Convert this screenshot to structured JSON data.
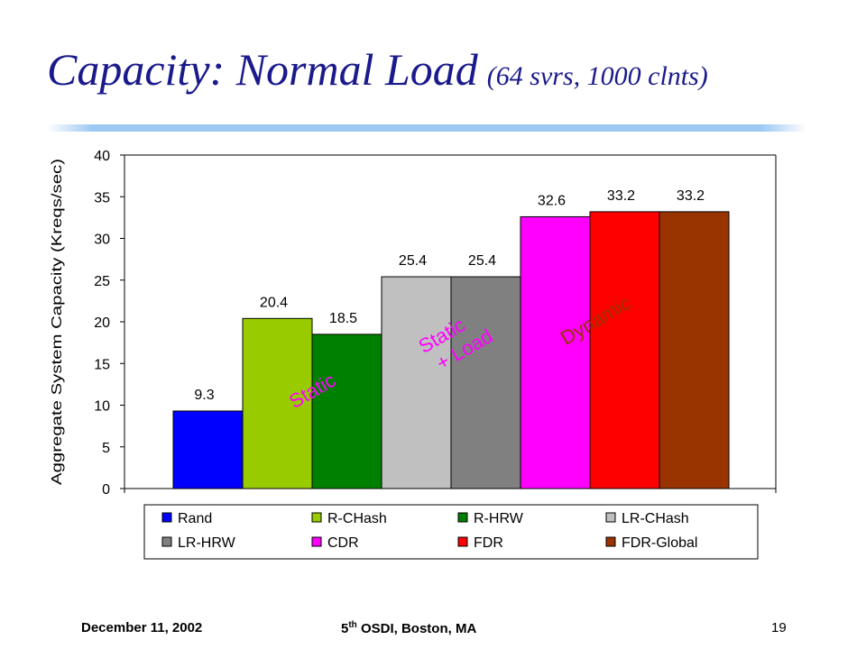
{
  "slide": {
    "title": "Capacity: Normal Load",
    "subtitle": "(64 svrs, 1000 clnts)"
  },
  "footer": {
    "date": "December 11, 2002",
    "conference_ordinal": "5",
    "conference_ordinal_suffix": "th",
    "conference_rest": " OSDI, Boston, MA",
    "page_number": "19"
  },
  "chart_data": {
    "type": "bar",
    "title": "",
    "xlabel": "",
    "ylabel": "Aggregate System Capacity (Kreqs/sec)",
    "ylim": [
      0,
      40
    ],
    "yticks": [
      0,
      5,
      10,
      15,
      20,
      25,
      30,
      35,
      40
    ],
    "grid": false,
    "legend_position": "bottom",
    "categories": [
      "Rand",
      "R-CHash",
      "R-HRW",
      "LR-CHash",
      "LR-HRW",
      "CDR",
      "FDR",
      "FDR-Global"
    ],
    "values": [
      9.3,
      20.4,
      18.5,
      25.4,
      25.4,
      32.6,
      33.2,
      33.2
    ],
    "data_labels": [
      "9.3",
      "20.4",
      "18.5",
      "25.4",
      "25.4",
      "32.6",
      "33.2",
      "33.2"
    ],
    "colors": [
      "#0000ff",
      "#99cc00",
      "#008000",
      "#c0c0c0",
      "#808080",
      "#ff00ff",
      "#ff0000",
      "#993300"
    ],
    "annotations": [
      {
        "text": "Static",
        "color": "#ff00ff"
      },
      {
        "text": "Static\n+ Load",
        "color": "#ff00ff"
      },
      {
        "text": "Dynamic",
        "color": "#993300"
      }
    ]
  }
}
